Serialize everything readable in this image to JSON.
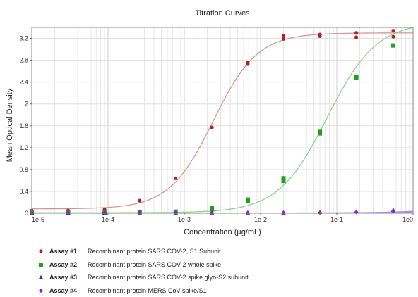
{
  "chart_data": {
    "type": "line",
    "title": "Titration Curves",
    "xlabel": "Concentration (µg/mL)",
    "ylabel": "Mean Optical Density",
    "xscale": "log",
    "xlim": [
      1e-05,
      1
    ],
    "ylim": [
      0,
      3.4
    ],
    "x_ticks": [
      "1e-5",
      "1e-4",
      "1e-3",
      "1e-2",
      "1e-1",
      "1e0"
    ],
    "y_ticks": [
      "0",
      "0.4",
      "0.8",
      "1.2",
      "1.6",
      "2",
      "2.4",
      "2.8",
      "3.2"
    ],
    "grid": true,
    "legend_position": "bottom",
    "series": [
      {
        "name": "Recombinant protein SARS COV-2, S1 Subunit",
        "tag": "Assay #1",
        "color": "#b22222",
        "line_color": "#d98c8c",
        "marker": "circle",
        "points": [
          {
            "x": 1e-05,
            "y": 0.05
          },
          {
            "x": 3e-05,
            "y": 0.05
          },
          {
            "x": 9e-05,
            "y": 0.07
          },
          {
            "x": 0.00026,
            "y": 0.23
          },
          {
            "x": 0.00077,
            "y": 0.64
          },
          {
            "x": 0.0023,
            "y": 1.57
          },
          {
            "x": 0.0068,
            "y": 2.73
          },
          {
            "x": 0.0068,
            "y": 2.76
          },
          {
            "x": 0.02,
            "y": 3.19
          },
          {
            "x": 0.02,
            "y": 3.25
          },
          {
            "x": 0.06,
            "y": 3.24
          },
          {
            "x": 0.06,
            "y": 3.27
          },
          {
            "x": 0.18,
            "y": 3.22
          },
          {
            "x": 0.18,
            "y": 3.3
          },
          {
            "x": 0.55,
            "y": 3.23
          },
          {
            "x": 0.55,
            "y": 3.34
          }
        ],
        "curve": {
          "bottom": 0.08,
          "top": 3.3,
          "ec50": 0.0024,
          "hill": 1.5
        }
      },
      {
        "name": "Recombinant protein SARS COV-2 whole spike",
        "tag": "Assay #2",
        "color": "#1fa01f",
        "line_color": "#88cc88",
        "marker": "square",
        "points": [
          {
            "x": 1e-05,
            "y": 0.01
          },
          {
            "x": 3e-05,
            "y": 0.01
          },
          {
            "x": 9e-05,
            "y": 0.01
          },
          {
            "x": 0.00026,
            "y": 0.02
          },
          {
            "x": 0.00077,
            "y": 0.03
          },
          {
            "x": 0.0023,
            "y": 0.07
          },
          {
            "x": 0.0023,
            "y": 0.09
          },
          {
            "x": 0.0068,
            "y": 0.22
          },
          {
            "x": 0.0068,
            "y": 0.25
          },
          {
            "x": 0.02,
            "y": 0.59
          },
          {
            "x": 0.02,
            "y": 0.64
          },
          {
            "x": 0.06,
            "y": 1.46
          },
          {
            "x": 0.06,
            "y": 1.49
          },
          {
            "x": 0.18,
            "y": 2.48
          },
          {
            "x": 0.18,
            "y": 2.5
          },
          {
            "x": 0.55,
            "y": 3.07
          }
        ],
        "curve": {
          "bottom": 0.01,
          "top": 3.5,
          "ec50": 0.075,
          "hill": 1.35
        }
      },
      {
        "name": "Recombinant protein SARS COV-2 spike glyo-S2 subunit",
        "tag": "Assay #3",
        "color": "#2233bb",
        "line_color": "#8899dd",
        "marker": "triangle",
        "points": [
          {
            "x": 1e-05,
            "y": 0.01
          },
          {
            "x": 3e-05,
            "y": 0.01
          },
          {
            "x": 9e-05,
            "y": 0.01
          },
          {
            "x": 0.00026,
            "y": 0.01
          },
          {
            "x": 0.00077,
            "y": 0.01
          },
          {
            "x": 0.0023,
            "y": 0.01
          },
          {
            "x": 0.0068,
            "y": 0.01
          },
          {
            "x": 0.02,
            "y": 0.01
          },
          {
            "x": 0.06,
            "y": 0.02
          },
          {
            "x": 0.18,
            "y": 0.03
          },
          {
            "x": 0.55,
            "y": 0.06
          }
        ],
        "curve": {
          "bottom": 0.005,
          "top": 3.3,
          "ec50": 100,
          "hill": 1
        }
      },
      {
        "name": "Recombinant protein MERS CoV spike/S1",
        "tag": "Assay #4",
        "color": "#8822bb",
        "line_color": "#bb88dd",
        "marker": "diamond",
        "points": [
          {
            "x": 1e-05,
            "y": 0.01
          },
          {
            "x": 3e-05,
            "y": 0.01
          },
          {
            "x": 9e-05,
            "y": 0.01
          },
          {
            "x": 0.00026,
            "y": 0.01
          },
          {
            "x": 0.00077,
            "y": 0.01
          },
          {
            "x": 0.0023,
            "y": 0.01
          },
          {
            "x": 0.0068,
            "y": 0.01
          },
          {
            "x": 0.02,
            "y": 0.01
          },
          {
            "x": 0.06,
            "y": 0.01
          },
          {
            "x": 0.18,
            "y": 0.02
          },
          {
            "x": 0.55,
            "y": 0.04
          }
        ],
        "curve": {
          "bottom": 0.005,
          "top": 3.3,
          "ec50": 200,
          "hill": 1
        }
      }
    ]
  }
}
